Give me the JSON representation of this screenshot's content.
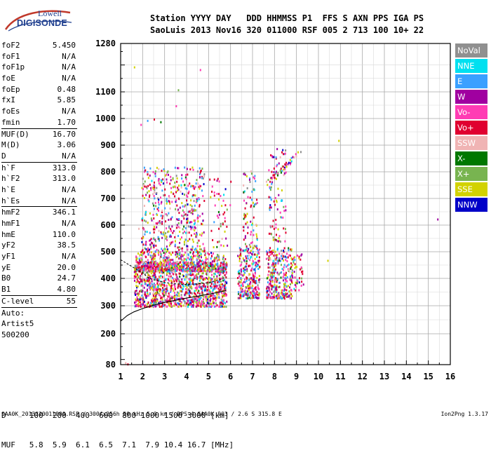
{
  "logo": {
    "line1": "Lowell",
    "line2": "DIGISONDE"
  },
  "header": {
    "row1": "Station YYYY DAY   DDD HHMMSS P1  FFS S AXN PPS IGA PS",
    "row2": "SaoLuis 2013 Nov16 320 011000 RSF 005 2 713 100 10+ 22"
  },
  "params": [
    {
      "name": "foF2",
      "value": "5.450"
    },
    {
      "name": "foF1",
      "value": "N/A"
    },
    {
      "name": "foF1p",
      "value": "N/A"
    },
    {
      "name": "foE",
      "value": "N/A"
    },
    {
      "name": "foEp",
      "value": "0.48"
    },
    {
      "name": "fxI",
      "value": "5.85"
    },
    {
      "name": "foEs",
      "value": "N/A"
    },
    {
      "name": "fmin",
      "value": "1.70"
    },
    {
      "name": "MUF(D)",
      "value": "16.70",
      "sep": true
    },
    {
      "name": "M(D)",
      "value": "3.06"
    },
    {
      "name": "D",
      "value": "N/A"
    },
    {
      "name": "h`F",
      "value": "313.0",
      "sep": true
    },
    {
      "name": "h`F2",
      "value": "313.0"
    },
    {
      "name": "h`E",
      "value": "N/A"
    },
    {
      "name": "h`Es",
      "value": "N/A"
    },
    {
      "name": "hmF2",
      "value": "346.1",
      "sep": true
    },
    {
      "name": "hmF1",
      "value": "N/A"
    },
    {
      "name": "hmE",
      "value": "110.0"
    },
    {
      "name": "yF2",
      "value": "38.5"
    },
    {
      "name": "yF1",
      "value": "N/A"
    },
    {
      "name": "yE",
      "value": "20.0"
    },
    {
      "name": "B0",
      "value": "24.7"
    },
    {
      "name": "B1",
      "value": "4.80"
    },
    {
      "name": "C-level",
      "value": "55",
      "sep": true
    },
    {
      "name": "Auto:",
      "value": "",
      "sep": true
    },
    {
      "name": "Artist5",
      "value": ""
    },
    {
      "name": "500200",
      "value": ""
    }
  ],
  "chart_data": {
    "type": "scatter",
    "x_ticks": [
      "1",
      "2",
      "3",
      "4",
      "5",
      "6",
      "7",
      "8",
      "9",
      "10",
      "11",
      "12",
      "13",
      "14",
      "15",
      "16"
    ],
    "y_ticks": [
      "80",
      "200",
      "300",
      "400",
      "500",
      "600",
      "700",
      "800",
      "900",
      "1000",
      "1100",
      "1280"
    ],
    "xlim": [
      1,
      16
    ],
    "ylim": [
      80,
      1280
    ],
    "grid": true,
    "legend_placement": "right",
    "legend": [
      {
        "label": "NoVal",
        "color": "#909090"
      },
      {
        "label": "NNE",
        "color": "#00e0f0"
      },
      {
        "label": "E",
        "color": "#3aa0ff"
      },
      {
        "label": "W",
        "color": "#a000a0"
      },
      {
        "label": "Vo-",
        "color": "#ff3cb4"
      },
      {
        "label": "Vo+",
        "color": "#e00030"
      },
      {
        "label": "SSW",
        "color": "#f0b4b4"
      },
      {
        "label": "X-",
        "color": "#007800"
      },
      {
        "label": "X+",
        "color": "#78b450"
      },
      {
        "label": "SSE",
        "color": "#d2d200"
      },
      {
        "label": "NNW",
        "color": "#0000c8"
      }
    ],
    "trace_profile": [
      [
        1.0,
        245
      ],
      [
        1.3,
        265
      ],
      [
        1.6,
        278
      ],
      [
        2,
        290
      ],
      [
        2.5,
        302
      ],
      [
        3,
        312
      ],
      [
        3.5,
        320
      ],
      [
        4,
        328
      ],
      [
        4.5,
        335
      ],
      [
        5,
        342
      ],
      [
        5.5,
        350
      ],
      [
        5.8,
        356
      ]
    ],
    "trace_virtual": [
      [
        1.0,
        470
      ],
      [
        1.3,
        455
      ],
      [
        1.6,
        440
      ],
      [
        2,
        420
      ],
      [
        2.3,
        400
      ],
      [
        2.5,
        395
      ],
      [
        3,
        385
      ],
      [
        3.5,
        380
      ],
      [
        4,
        378
      ],
      [
        4.5,
        380
      ],
      [
        5,
        384
      ],
      [
        5.5,
        395
      ],
      [
        5.8,
        405
      ]
    ],
    "clusters": [
      {
        "fmin": 1.6,
        "fmax": 5.8,
        "hmin": 300,
        "hmax": 500,
        "n": 1300
      },
      {
        "fmin": 1.9,
        "fmax": 4.8,
        "hmin": 500,
        "hmax": 820,
        "n": 520
      },
      {
        "fmin": 1.6,
        "fmax": 5.8,
        "hmin": 430,
        "hmax": 465,
        "n": 500
      },
      {
        "fmin": 6.3,
        "fmax": 7.3,
        "hmin": 330,
        "hmax": 520,
        "n": 260
      },
      {
        "fmin": 6.5,
        "fmax": 7.2,
        "hmin": 520,
        "hmax": 820,
        "n": 80
      },
      {
        "fmin": 7.6,
        "fmax": 8.8,
        "hmin": 330,
        "hmax": 520,
        "n": 320
      },
      {
        "fmin": 7.7,
        "fmax": 8.5,
        "hmin": 540,
        "hmax": 900,
        "n": 90
      },
      {
        "fmin": 8.8,
        "fmax": 9.3,
        "hmin": 360,
        "hmax": 500,
        "n": 40
      },
      {
        "fmin": 5.0,
        "fmax": 6.0,
        "hmin": 520,
        "hmax": 790,
        "n": 50
      }
    ],
    "outliers": [
      [
        1.6,
        1195
      ],
      [
        4.6,
        1185
      ],
      [
        1.9,
        980
      ],
      [
        2.2,
        995
      ],
      [
        2.5,
        1000
      ],
      [
        2.8,
        990
      ],
      [
        3.5,
        1050
      ],
      [
        3.6,
        1110
      ],
      [
        10.9,
        920
      ],
      [
        15.4,
        625
      ],
      [
        10.4,
        470
      ],
      [
        1.2,
        90
      ],
      [
        1.3,
        85
      ],
      [
        1.8,
        590
      ]
    ]
  },
  "muf_table": {
    "row1": "D     100  200  400  600  800 1000 1500 3000 [km]",
    "row2": "MUF   5.8  5.9  6.1  6.5  7.1  7.9 10.4 16.7 [MHz]"
  },
  "footer": {
    "left": "SAA0K_2013320011000.RSF / 300fx256h 50 kHz 5.0 km / DPS-4 SAA0K 903 / 2.6 S 315.8 E",
    "right": "Ion2Png 1.3.17"
  }
}
